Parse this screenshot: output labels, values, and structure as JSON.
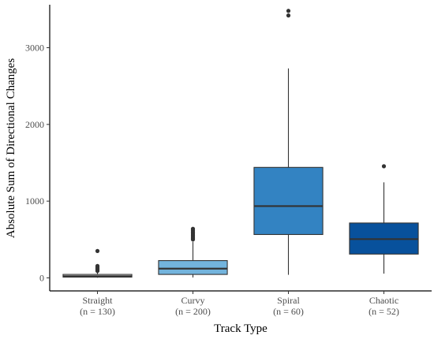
{
  "chart_data": {
    "type": "box",
    "xlabel": "Track Type",
    "ylabel": "Absolute Sum of Directional Changes",
    "ylim": [
      -170,
      3560
    ],
    "yticks": [
      0,
      1000,
      2000,
      3000
    ],
    "grid": false,
    "categories": [
      {
        "name": "Straight",
        "n_label": "(n = 130)",
        "color": "#e6e6e6",
        "whisker_low": 2,
        "q1": 10,
        "median": 22,
        "q3": 45,
        "whisker_high": 72,
        "outliers": [
          90,
          105,
          115,
          125,
          135,
          145,
          155,
          350
        ]
      },
      {
        "name": "Curvy",
        "n_label": "(n = 200)",
        "color": "#73b4dd",
        "whisker_low": 5,
        "q1": 45,
        "median": 120,
        "q3": 225,
        "whisker_high": 470,
        "outliers": [
          500,
          515,
          525,
          540,
          555,
          570,
          585,
          600,
          620,
          640
        ]
      },
      {
        "name": "Spiral",
        "n_label": "(n = 60)",
        "color": "#3383c2",
        "whisker_low": 40,
        "q1": 565,
        "median": 935,
        "q3": 1440,
        "whisker_high": 2730,
        "outliers": [
          3420,
          3480
        ]
      },
      {
        "name": "Chaotic",
        "n_label": "(n = 52)",
        "color": "#08519c",
        "whisker_low": 55,
        "q1": 310,
        "median": 505,
        "q3": 715,
        "whisker_high": 1245,
        "outliers": [
          1455
        ]
      }
    ]
  }
}
